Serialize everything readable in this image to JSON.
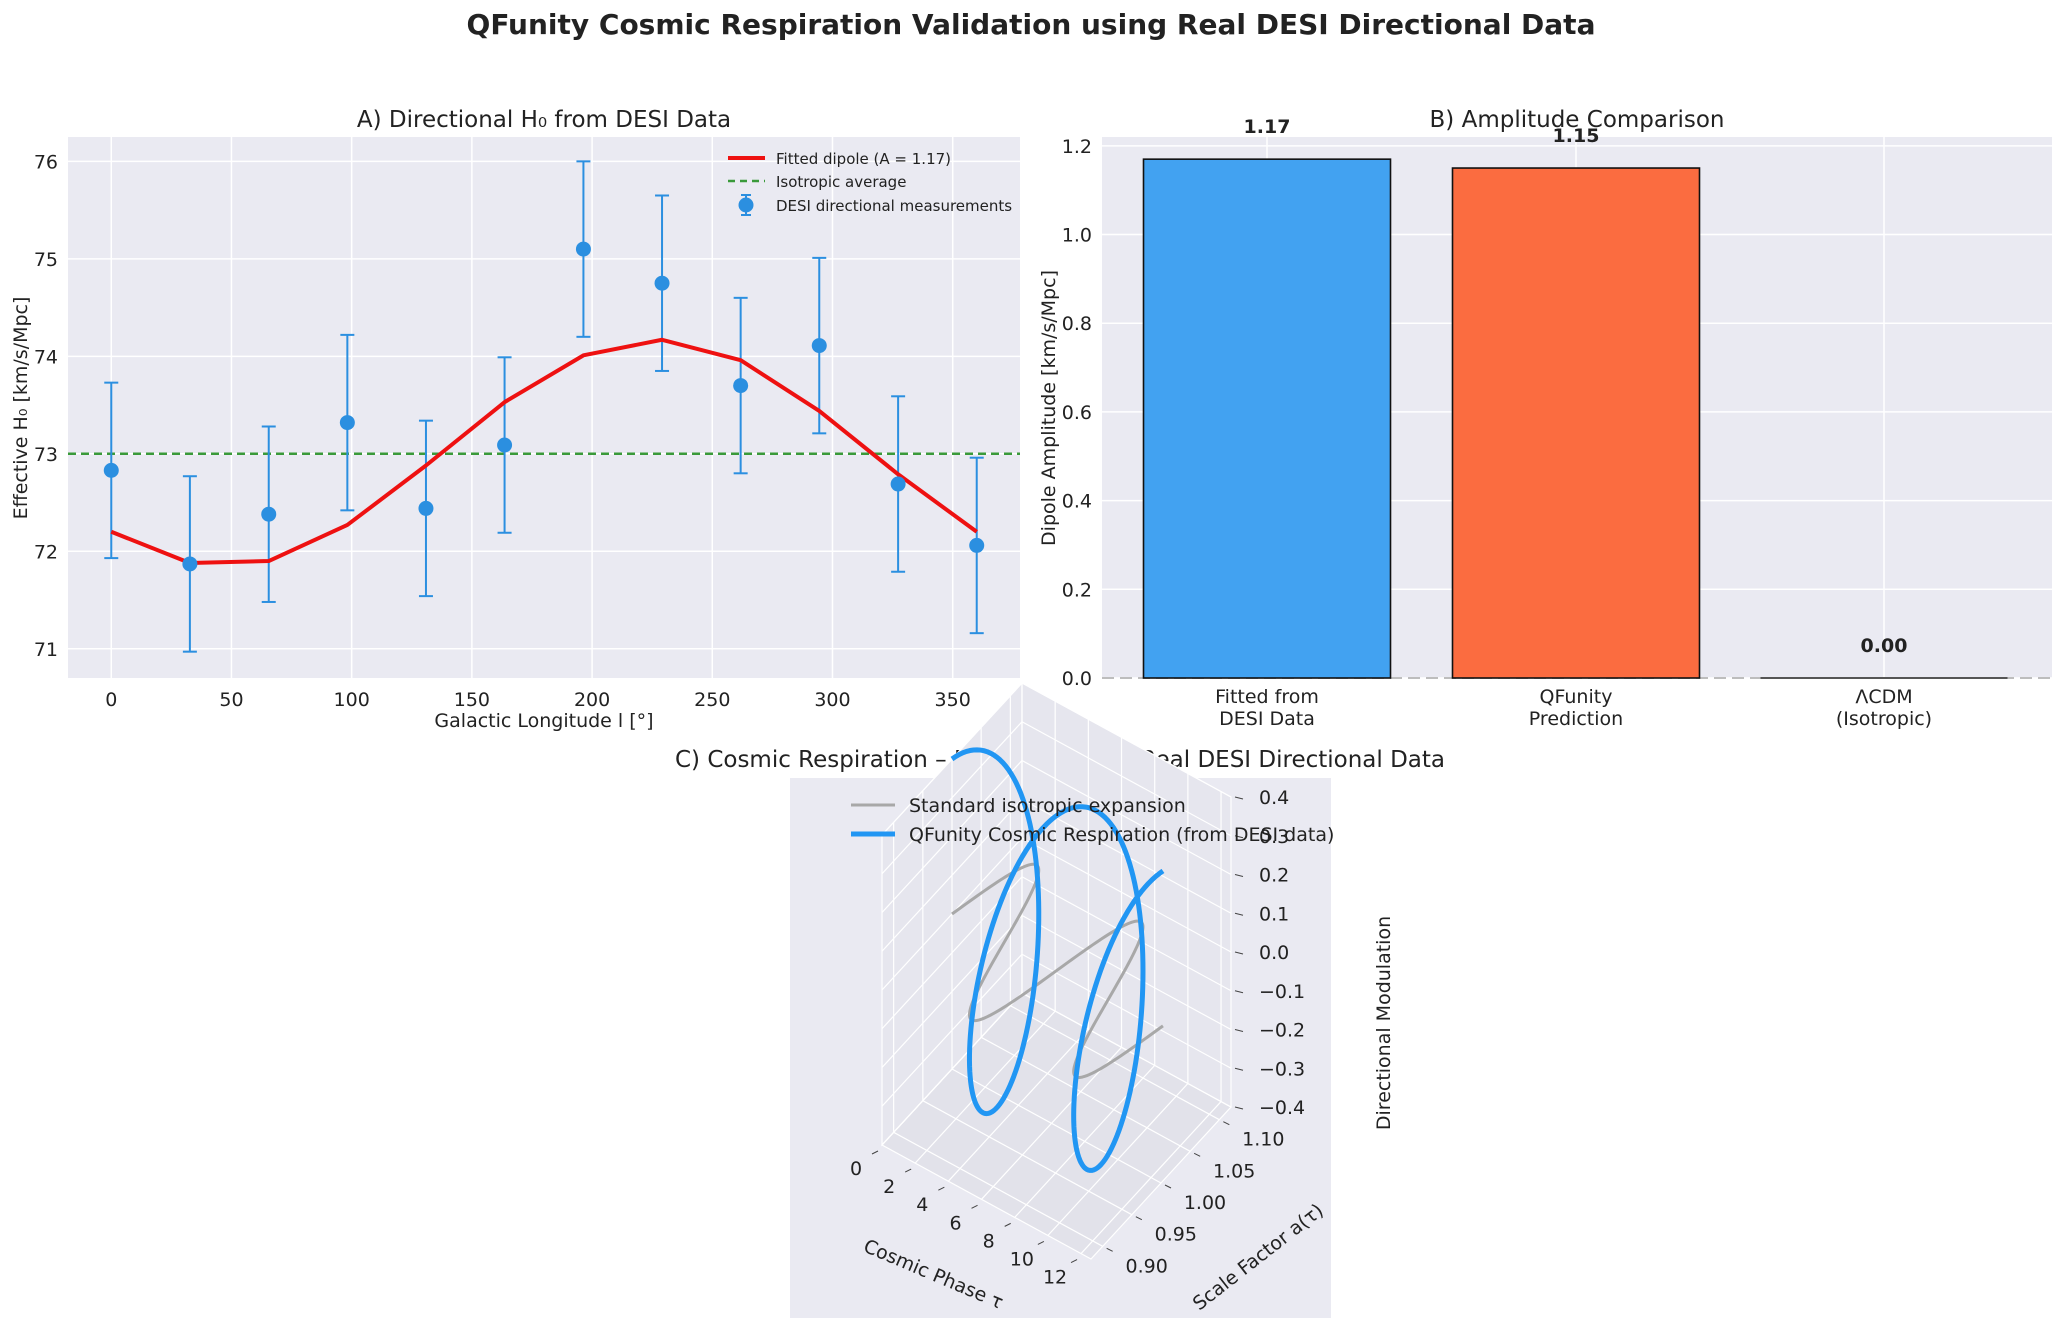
{
  "figure": {
    "suptitle": "QFunity Cosmic Respiration Validation using Real DESI Directional Data"
  },
  "colors": {
    "measurement": "#2b8fe0",
    "fit": "#ee1111",
    "isotropic": "#3a9a3a",
    "bar_desi": "#42a2f1",
    "bar_qfunity": "#fb6c40",
    "bar_lcdm": "#9e9e9e",
    "grey_curve": "#a8a8a8",
    "respiration_curve": "#2196f3",
    "axes_bg": "#eaeaf2"
  },
  "chart_data": [
    {
      "id": "A",
      "type": "scatter",
      "title": "A) Directional H₀ from DESI Data",
      "xlabel": "Galactic Longitude l [°]",
      "ylabel": "Effective H₀ [km/s/Mpc]",
      "xlim": [
        -18,
        378
      ],
      "ylim": [
        70.7,
        76.25
      ],
      "xticks": [
        0,
        50,
        100,
        150,
        200,
        250,
        300,
        350
      ],
      "yticks": [
        71,
        72,
        73,
        74,
        75,
        76
      ],
      "grid": true,
      "legend_position": "upper right",
      "series": [
        {
          "name": "DESI directional measurements",
          "kind": "errorbar",
          "x": [
            0,
            32.7,
            65.5,
            98.2,
            130.9,
            163.6,
            196.4,
            229.1,
            261.8,
            294.5,
            327.3,
            360
          ],
          "y": [
            72.83,
            71.87,
            72.38,
            73.32,
            72.44,
            73.09,
            75.1,
            74.75,
            73.7,
            74.11,
            72.69,
            72.06
          ],
          "yerr": [
            0.9,
            0.9,
            0.9,
            0.9,
            0.9,
            0.9,
            0.9,
            0.9,
            0.9,
            0.9,
            0.9,
            0.9
          ]
        },
        {
          "name": "Fitted dipole (A = 1.17)",
          "kind": "line",
          "x": [
            0,
            32.7,
            65.5,
            98.2,
            130.9,
            163.6,
            196.4,
            229.1,
            261.8,
            294.5,
            327.3,
            360
          ],
          "y": [
            72.2,
            71.88,
            71.9,
            72.27,
            72.88,
            73.53,
            74.01,
            74.17,
            73.96,
            73.44,
            72.79,
            72.2
          ]
        },
        {
          "name": "Isotropic average",
          "kind": "hline",
          "y": 73.0
        }
      ]
    },
    {
      "id": "B",
      "type": "bar",
      "title": "B) Amplitude Comparison",
      "ylabel": "Dipole Amplitude [km/s/Mpc]",
      "ylim": [
        0,
        1.22
      ],
      "yticks": [
        "0.0",
        "0.2",
        "0.4",
        "0.6",
        "0.8",
        "1.0",
        "1.2"
      ],
      "grid": true,
      "categories": [
        [
          "Fitted from",
          "DESI Data"
        ],
        [
          "QFunity",
          "Prediction"
        ],
        [
          "ΛCDM",
          "(Isotropic)"
        ]
      ],
      "values": [
        1.17,
        1.15,
        0.0
      ],
      "value_labels": [
        "1.17",
        "1.15",
        "0.00"
      ]
    },
    {
      "id": "C",
      "type": "line",
      "title": "C) Cosmic Respiration – Expansion from Real DESI Directional Data",
      "xlabel": "Cosmic Phase τ",
      "ylabel": "Scale Factor a(τ)",
      "zlabel": "Directional Modulation",
      "xlim": [
        0,
        12.6
      ],
      "ylim": [
        0.88,
        1.12
      ],
      "zlim": [
        -0.4,
        0.4
      ],
      "xticks": [
        "0",
        "2",
        "4",
        "6",
        "8",
        "10",
        "12"
      ],
      "yticks": [
        "0.90",
        "0.95",
        "1.00",
        "1.05",
        "1.10"
      ],
      "zticks": [
        "−0.4",
        "−0.3",
        "−0.2",
        "−0.1",
        "0.0",
        "0.1",
        "0.2",
        "0.3",
        "0.4"
      ],
      "grid": true,
      "legend_position": "upper left",
      "series": [
        {
          "name": "Standard isotropic expansion",
          "kind": "3d-curve",
          "equation": "a = 1 + 0.1·sin(τ), z = 0"
        },
        {
          "name": "QFunity Cosmic Respiration (from DESI data)",
          "kind": "3d-curve",
          "equation": "a = 1 + 0.1·sin(τ), z = 0.4·cos(τ)"
        }
      ]
    }
  ]
}
